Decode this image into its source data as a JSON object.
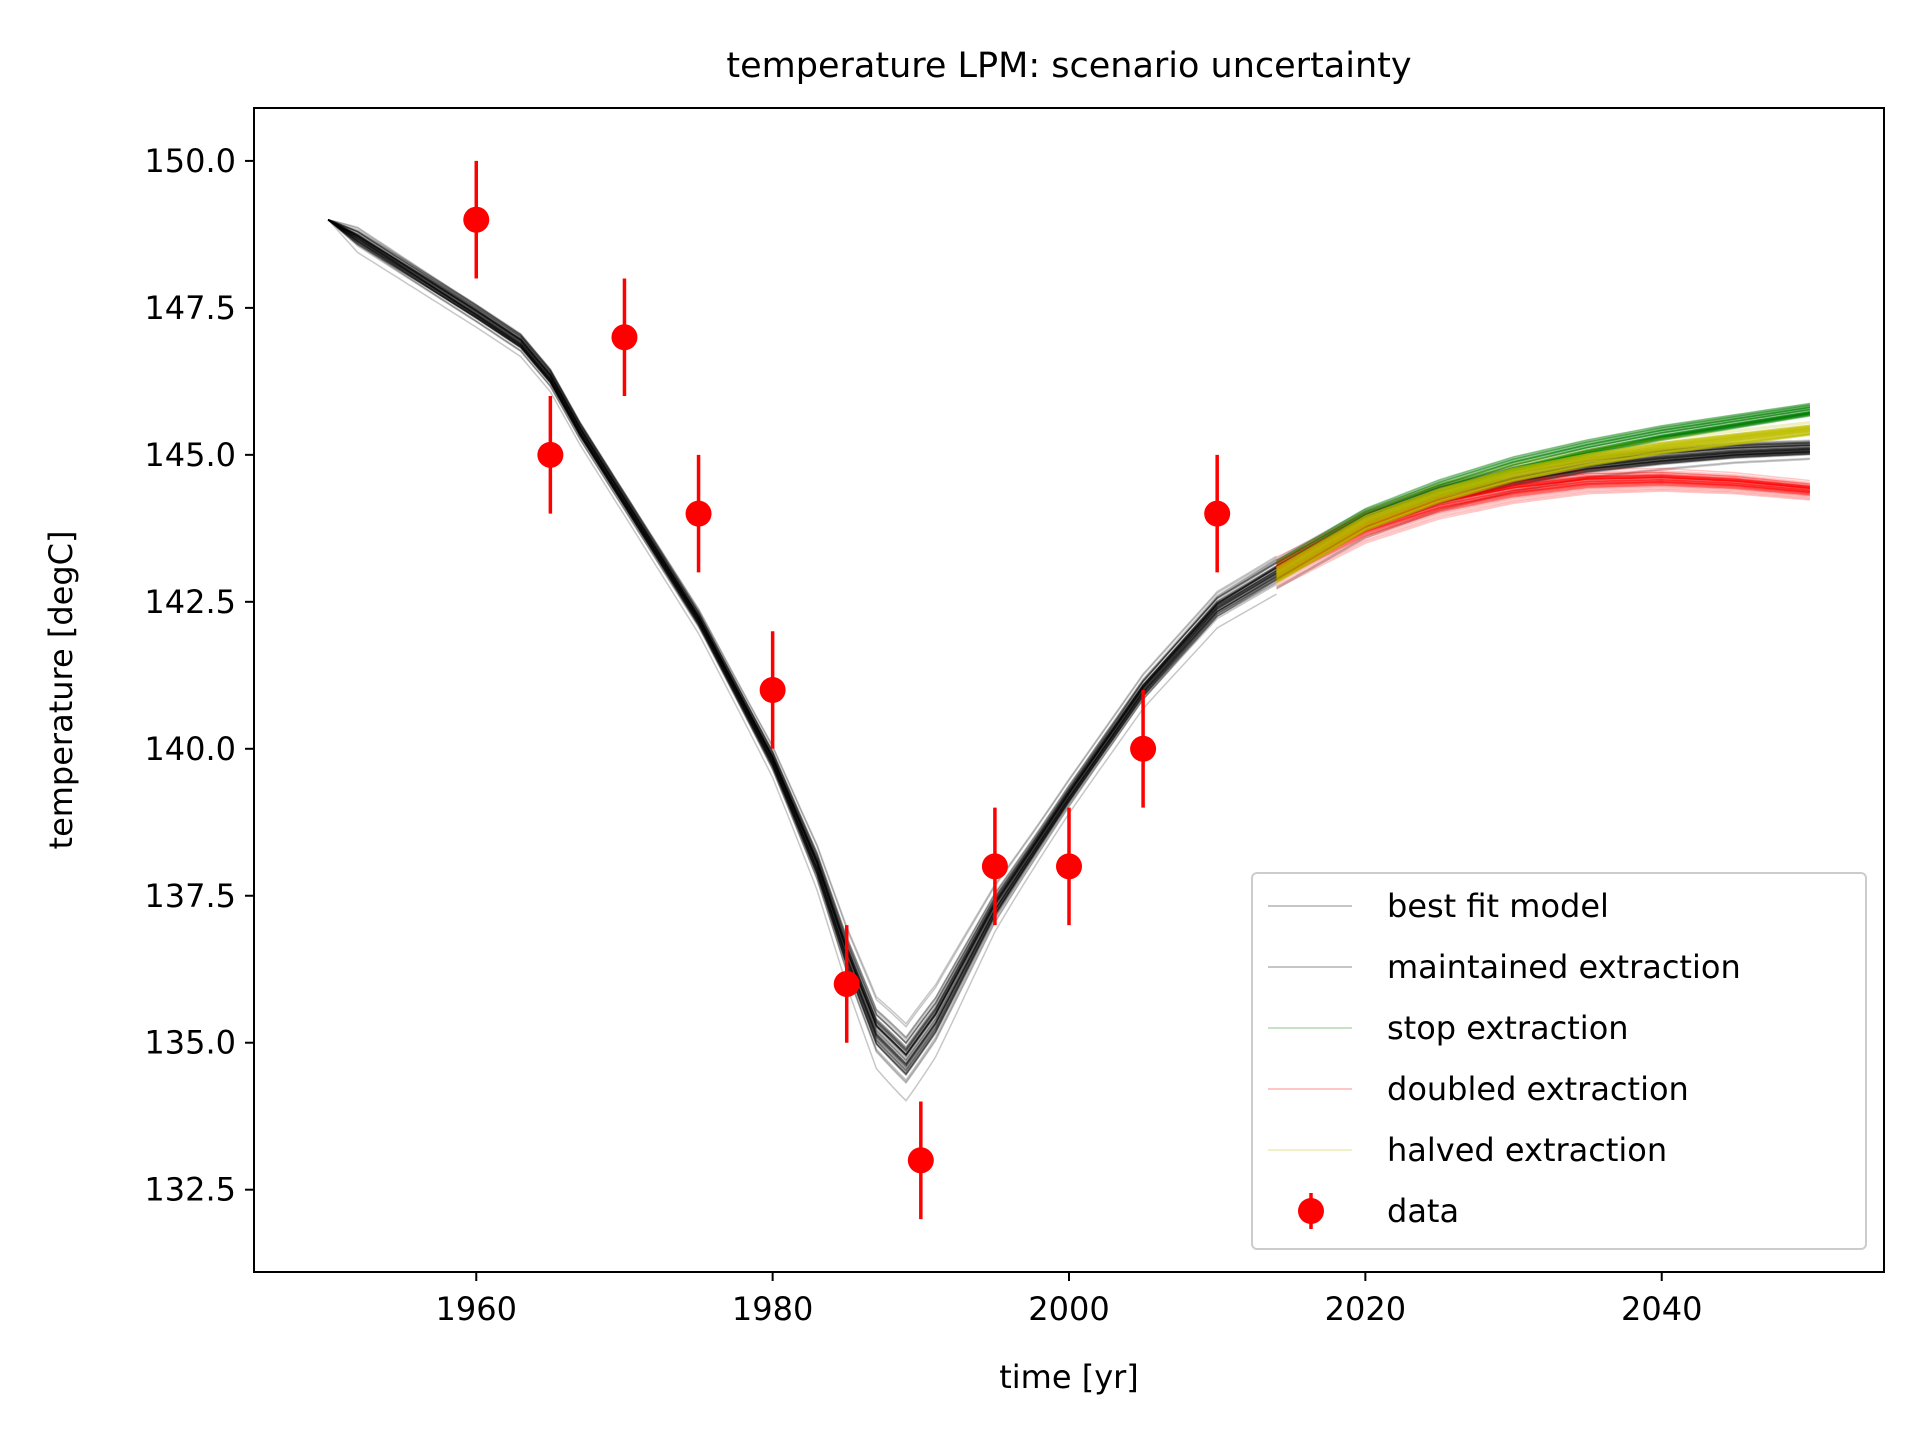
{
  "chart_data": {
    "type": "line",
    "title": "temperature LPM: scenario uncertainty",
    "xlabel": "time [yr]",
    "ylabel": "temperature [degC]",
    "xlim": [
      1945,
      2055
    ],
    "ylim": [
      131.1,
      150.9
    ],
    "x_ticks": [
      1960,
      1980,
      2000,
      2020,
      2040
    ],
    "y_ticks": [
      132.5,
      135.0,
      137.5,
      140.0,
      142.5,
      145.0,
      147.5,
      150.0
    ],
    "x_tick_labels": [
      "1960",
      "1980",
      "2000",
      "2020",
      "2040"
    ],
    "y_tick_labels": [
      "132.5",
      "135.0",
      "137.5",
      "140.0",
      "142.5",
      "145.0",
      "147.5",
      "150.0"
    ],
    "grid": false,
    "legend_position": "lower right",
    "legend": [
      {
        "label": "best fit model",
        "color": "#000000",
        "kind": "line"
      },
      {
        "label": "maintained extraction",
        "color": "#000000",
        "kind": "line"
      },
      {
        "label": "stop extraction",
        "color": "#008000",
        "kind": "line"
      },
      {
        "label": "doubled extraction",
        "color": "#ff0000",
        "kind": "line"
      },
      {
        "label": "halved extraction",
        "color": "#bfbf00",
        "kind": "line"
      },
      {
        "label": "data",
        "color": "#ff0000",
        "kind": "errorbar"
      }
    ],
    "ensemble_size": 60,
    "series": [
      {
        "name": "best fit model",
        "color": "#000000",
        "x": [
          1950,
          1955,
          1960,
          1963,
          1965,
          1967,
          1970,
          1975,
          1980,
          1983,
          1985,
          1987,
          1989,
          1991,
          1995,
          2000,
          2005,
          2010,
          2014
        ],
        "y": [
          149.0,
          148.2,
          147.4,
          146.9,
          146.3,
          145.4,
          144.2,
          142.2,
          139.8,
          138.0,
          136.5,
          135.2,
          134.7,
          135.4,
          137.3,
          139.2,
          141.0,
          142.4,
          143.0
        ]
      },
      {
        "name": "maintained extraction",
        "color": "#000000",
        "x": [
          2014,
          2020,
          2025,
          2030,
          2035,
          2040,
          2045,
          2050
        ],
        "y": [
          143.0,
          143.85,
          144.3,
          144.6,
          144.82,
          144.95,
          145.05,
          145.1
        ]
      },
      {
        "name": "stop extraction",
        "color": "#008000",
        "x": [
          2014,
          2020,
          2025,
          2030,
          2035,
          2040,
          2045,
          2050
        ],
        "y": [
          143.0,
          143.9,
          144.4,
          144.8,
          145.1,
          145.35,
          145.55,
          145.75
        ]
      },
      {
        "name": "doubled extraction",
        "color": "#ff0000",
        "x": [
          2014,
          2020,
          2025,
          2030,
          2035,
          2040,
          2045,
          2050
        ],
        "y": [
          143.0,
          143.75,
          144.15,
          144.4,
          144.55,
          144.58,
          144.52,
          144.4
        ]
      },
      {
        "name": "halved extraction",
        "color": "#bfbf00",
        "x": [
          2014,
          2020,
          2025,
          2030,
          2035,
          2040,
          2045,
          2050
        ],
        "y": [
          143.0,
          143.88,
          144.35,
          144.7,
          144.95,
          145.15,
          145.3,
          145.45
        ]
      }
    ],
    "data_points": {
      "name": "data",
      "color": "#ff0000",
      "error": 1.0,
      "x": [
        1960,
        1965,
        1970,
        1975,
        1980,
        1985,
        1990,
        1995,
        2000,
        2005,
        2010
      ],
      "y": [
        149,
        145,
        147,
        144,
        141,
        136,
        133,
        138,
        138,
        140,
        144
      ]
    }
  }
}
